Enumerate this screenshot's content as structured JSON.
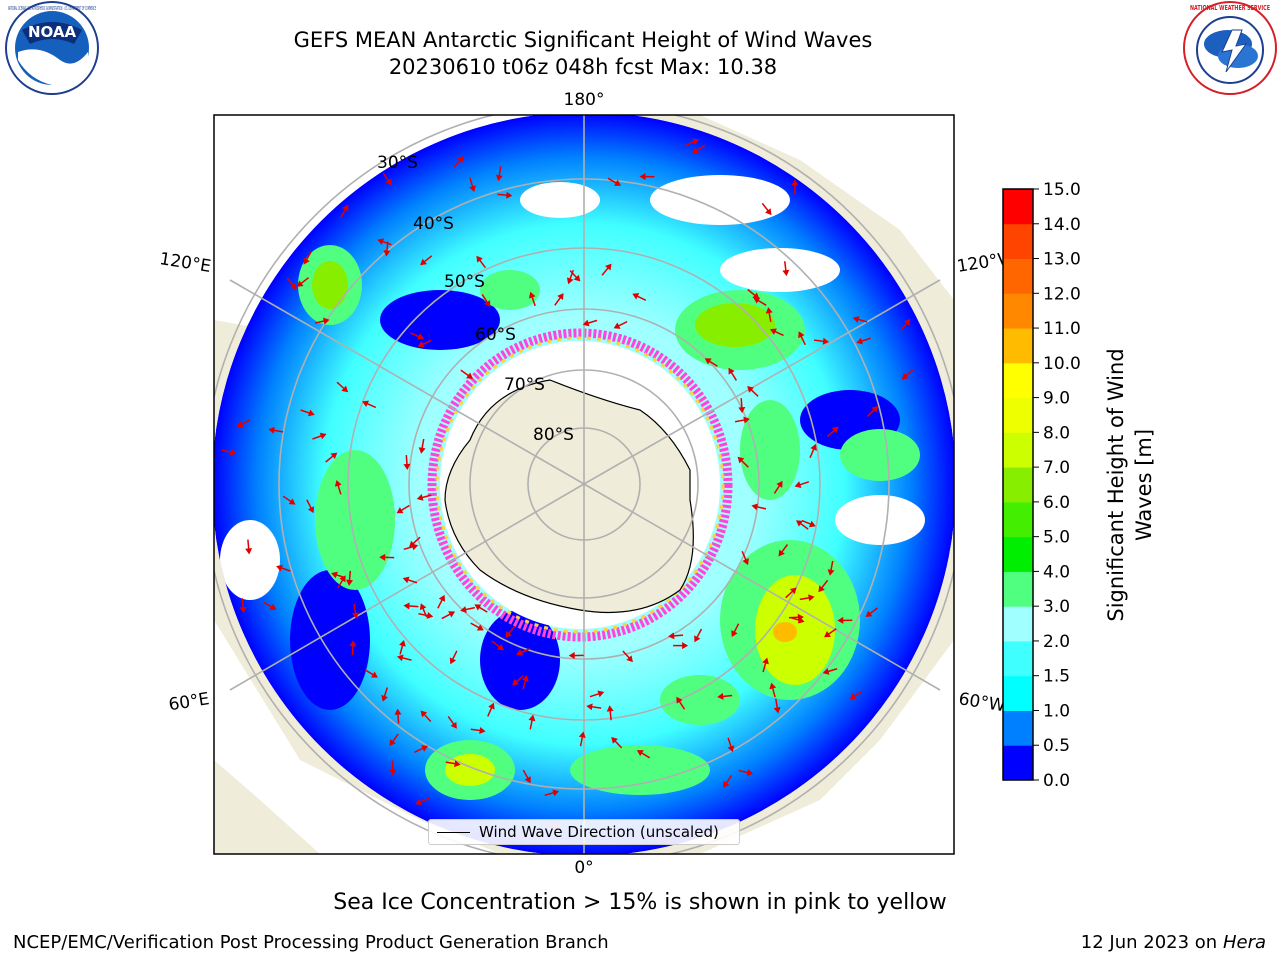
{
  "title": {
    "line1": "GEFS MEAN Antarctic Significant Height of Wind Waves",
    "line2": "20230610 t06z 048h fcst   Max: 10.38"
  },
  "logos": {
    "noaa": {
      "text": "NOAA",
      "ring_text": "NATIONAL OCEANIC AND ATMOSPHERIC ADMINISTRATION · U.S. DEPARTMENT OF COMMERCE",
      "icon": "noaa-logo"
    },
    "nws": {
      "ring_text": "NATIONAL WEATHER SERVICE",
      "icon": "nws-logo"
    }
  },
  "map": {
    "projection": "south-polar-stereographic",
    "longitude_labels": [
      "180°",
      "120°E",
      "120°W",
      "60°E",
      "60°W",
      "0°"
    ],
    "latitude_labels": [
      "30°S",
      "40°S",
      "50°S",
      "60°S",
      "70°S",
      "80°S"
    ],
    "max_value": 10.38,
    "colors": {
      "land": "#efecda",
      "ice_edge": "#ff44dd",
      "arrow": "#e00000",
      "grid": "#b0b0b0"
    }
  },
  "legend": {
    "label": "Wind Wave Direction (unscaled)"
  },
  "colorbar": {
    "label_line1": "Significant Height of Wind",
    "label_line2": "Waves [m]",
    "ticks": [
      "0.0",
      "0.5",
      "1.0",
      "1.5",
      "2.0",
      "3.0",
      "4.0",
      "5.0",
      "6.0",
      "7.0",
      "8.0",
      "9.0",
      "10.0",
      "11.0",
      "12.0",
      "13.0",
      "14.0",
      "15.0"
    ],
    "colors": [
      "#0000ff",
      "#0080ff",
      "#00ffff",
      "#40ffff",
      "#a0ffff",
      "#50ff80",
      "#00ee00",
      "#44ee00",
      "#88ee00",
      "#ccff00",
      "#eeff00",
      "#ffff00",
      "#ffbb00",
      "#ff8800",
      "#ff6600",
      "#ff4400",
      "#ff0000"
    ]
  },
  "footer": {
    "ice_note": "Sea Ice Concentration > 15% is shown in pink to yellow",
    "credit": "NCEP/EMC/Verification Post Processing Product Generation Branch",
    "date": "12 Jun 2023 on",
    "host": "Hera"
  }
}
